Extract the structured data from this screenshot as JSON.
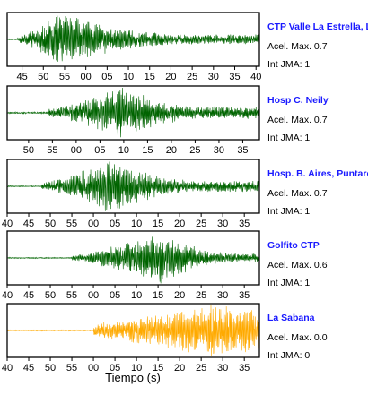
{
  "chart_data": {
    "type": "line",
    "xlabel": "Tiempo (s)",
    "panels": [
      {
        "station": "CTP Valle La Estrella, L",
        "acel_max": "Acel. Max. 0.7",
        "int_jma": "Int JMA: 1",
        "color": "#006400",
        "ticks": [
          "45",
          "50",
          "55",
          "00",
          "05",
          "10",
          "15",
          "20",
          "25",
          "30",
          "35",
          "40"
        ],
        "x_range_s": [
          41.5,
          100.8
        ],
        "signal": {
          "noise_end_s": 44.0,
          "peak_s": 54.0,
          "peak_amp": 0.95,
          "decay": 0.06,
          "pre_noise": 0.02,
          "tail_floor": 0.18
        }
      },
      {
        "station": "Hosp C. Neily",
        "acel_max": "Acel. Max. 0.7",
        "int_jma": "Int JMA: 1",
        "color": "#006400",
        "ticks": [
          "50",
          "55",
          "00",
          "05",
          "10",
          "15",
          "20",
          "25",
          "30",
          "35"
        ],
        "x_range_s": [
          45.5,
          98.5
        ],
        "signal": {
          "noise_end_s": 54.0,
          "peak_s": 70.0,
          "peak_amp": 0.95,
          "decay": 0.1,
          "pre_noise": 0.03,
          "tail_floor": 0.22
        }
      },
      {
        "station": "Hosp. B. Aires, Puntare",
        "acel_max": "Acel. Max. 0.7",
        "int_jma": "Int JMA: 1",
        "color": "#006400",
        "ticks": [
          "40",
          "45",
          "50",
          "55",
          "00",
          "05",
          "10",
          "15",
          "20",
          "25",
          "30",
          "35"
        ],
        "x_range_s": [
          40.0,
          98.5
        ],
        "signal": {
          "noise_end_s": 48.0,
          "peak_s": 64.0,
          "peak_amp": 0.95,
          "decay": 0.08,
          "pre_noise": 0.02,
          "tail_floor": 0.2
        }
      },
      {
        "station": "Golfito CTP",
        "acel_max": "Acel. Max. 0.6",
        "int_jma": "Int JMA: 1",
        "color": "#006400",
        "ticks": [
          "40",
          "45",
          "50",
          "55",
          "00",
          "05",
          "10",
          "15",
          "20",
          "25",
          "30",
          "35"
        ],
        "x_range_s": [
          40.0,
          98.5
        ],
        "signal": {
          "noise_end_s": 55.0,
          "peak_s": 75.0,
          "peak_amp": 0.95,
          "decay": 0.1,
          "pre_noise": 0.02,
          "tail_floor": 0.15
        }
      },
      {
        "station": "La Sabana",
        "acel_max": "Acel. Max. 0.0",
        "int_jma": "Int JMA: 0",
        "color": "#ffaa00",
        "ticks": [
          "40",
          "45",
          "50",
          "55",
          "00",
          "05",
          "10",
          "15",
          "20",
          "25",
          "30",
          "35"
        ],
        "x_range_s": [
          40.0,
          98.5
        ],
        "signal": {
          "noise_end_s": 60.0,
          "peak_s": 88.0,
          "peak_amp": 0.95,
          "decay": 0.03,
          "pre_noise": 0.02,
          "tail_floor": 0.45
        }
      }
    ]
  }
}
